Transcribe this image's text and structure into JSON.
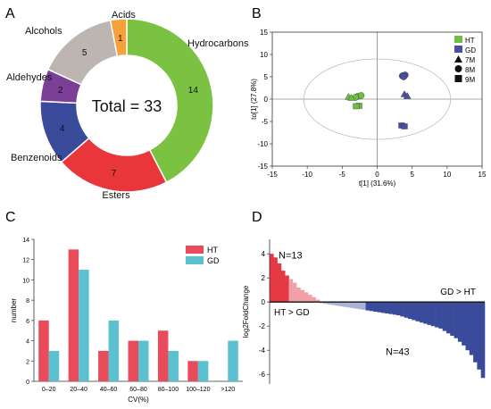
{
  "chart_data": [
    {
      "panel": "A",
      "type": "pie",
      "center_label": "Total = 33",
      "slices": [
        {
          "label": "Hydrocarbons",
          "value": 14,
          "color": "#7cc242"
        },
        {
          "label": "Esters",
          "value": 7,
          "color": "#e8363b"
        },
        {
          "label": "Benzenoids",
          "value": 4,
          "color": "#3a4b9b"
        },
        {
          "label": "Aldehydes",
          "value": 2,
          "color": "#7b3f97"
        },
        {
          "label": "Alcohols",
          "value": 5,
          "color": "#bdb5b1"
        },
        {
          "label": "Acids",
          "value": 1,
          "color": "#f6a13a"
        }
      ]
    },
    {
      "panel": "B",
      "type": "scatter",
      "xlabel": "t[1] (31.6%)",
      "ylabel": "to[1] (27.8%)",
      "xlim": [
        -15,
        15
      ],
      "ylim": [
        -15,
        15
      ],
      "xticks": [
        -15,
        -10,
        -5,
        0,
        5,
        10,
        15
      ],
      "yticks": [
        15,
        10,
        5,
        0,
        -5,
        -10,
        -15
      ],
      "legend": [
        {
          "label": "HT",
          "kind": "color",
          "color": "#6fbe44"
        },
        {
          "label": "GD",
          "kind": "color",
          "color": "#4a4fa3"
        },
        {
          "label": "7M",
          "kind": "shape",
          "shape": "triangle"
        },
        {
          "label": "8M",
          "kind": "shape",
          "shape": "circle"
        },
        {
          "label": "9M",
          "kind": "shape",
          "shape": "square"
        }
      ],
      "points": [
        {
          "x": -2.8,
          "y": 0.6,
          "group": "HT",
          "shape": "circle"
        },
        {
          "x": -2.3,
          "y": 0.8,
          "group": "HT",
          "shape": "circle"
        },
        {
          "x": -3.1,
          "y": 0.4,
          "group": "HT",
          "shape": "circle"
        },
        {
          "x": -4.1,
          "y": 0.5,
          "group": "HT",
          "shape": "triangle"
        },
        {
          "x": -3.7,
          "y": 0.3,
          "group": "HT",
          "shape": "triangle"
        },
        {
          "x": -2.6,
          "y": -1.5,
          "group": "HT",
          "shape": "square"
        },
        {
          "x": -3.0,
          "y": -1.6,
          "group": "HT",
          "shape": "square"
        },
        {
          "x": 3.6,
          "y": 5.2,
          "group": "GD",
          "shape": "circle"
        },
        {
          "x": 4.0,
          "y": 5.4,
          "group": "GD",
          "shape": "circle"
        },
        {
          "x": 3.8,
          "y": 5.0,
          "group": "GD",
          "shape": "circle"
        },
        {
          "x": 3.9,
          "y": 1.1,
          "group": "GD",
          "shape": "triangle"
        },
        {
          "x": 4.3,
          "y": 0.7,
          "group": "GD",
          "shape": "triangle"
        },
        {
          "x": 3.5,
          "y": -5.9,
          "group": "GD",
          "shape": "square"
        },
        {
          "x": 3.9,
          "y": -6.1,
          "group": "GD",
          "shape": "square"
        }
      ]
    },
    {
      "panel": "C",
      "type": "bar",
      "xlabel": "CV(%)",
      "ylabel": "number",
      "ylim": [
        0,
        14
      ],
      "yticks": [
        0,
        2,
        4,
        6,
        8,
        10,
        12,
        14
      ],
      "categories": [
        "0–20",
        "20–40",
        "40–60",
        "60–80",
        "80–100",
        "100–120",
        ">120"
      ],
      "series": [
        {
          "name": "HT",
          "color": "#e84c5b",
          "values": [
            6,
            13,
            3,
            4,
            5,
            2,
            0
          ]
        },
        {
          "name": "GD",
          "color": "#5bc0cf",
          "values": [
            3,
            11,
            6,
            4,
            3,
            2,
            4
          ]
        }
      ]
    },
    {
      "panel": "D",
      "type": "bar",
      "ylabel": "log2FoldChange",
      "ylim": [
        -6.8,
        5.2
      ],
      "yticks": [
        4,
        2,
        0,
        -2,
        -4,
        -6
      ],
      "annotations": [
        "N=13",
        "HT > GD",
        "GD > HT",
        "N=43"
      ],
      "positive_values": [
        4.0,
        3.7,
        3.2,
        2.6,
        2.2,
        1.9,
        1.6,
        1.2,
        1.0,
        0.8,
        0.6,
        0.4,
        0.2
      ],
      "negative_values": [
        -0.1,
        -0.15,
        -0.2,
        -0.25,
        -0.3,
        -0.35,
        -0.4,
        -0.45,
        -0.5,
        -0.55,
        -0.6,
        -0.65,
        -0.7,
        -0.75,
        -0.8,
        -0.85,
        -0.9,
        -0.95,
        -1.0,
        -1.05,
        -1.1,
        -1.2,
        -1.3,
        -1.4,
        -1.5,
        -1.6,
        -1.7,
        -1.8,
        -1.9,
        -2.0,
        -2.1,
        -2.2,
        -2.4,
        -2.6,
        -2.8,
        -3.0,
        -3.3,
        -3.6,
        -4.0,
        -4.4,
        -5.0,
        -5.6,
        -6.3
      ],
      "colors": {
        "pos_strong": "#e53a44",
        "pos_light": "#f2a0a8",
        "neg_light": "#aab2d8",
        "neg_strong": "#3a4b9b"
      }
    }
  ],
  "panel_labels": [
    "A",
    "B",
    "C",
    "D"
  ]
}
